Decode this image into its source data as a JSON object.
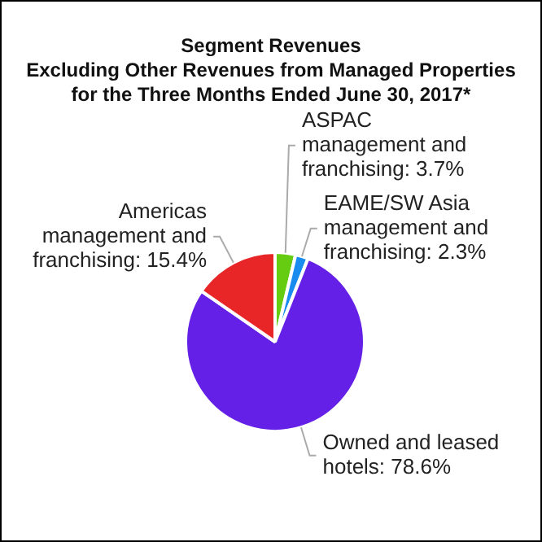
{
  "chart_data": {
    "type": "pie",
    "title": "Segment Revenues\nExcluding Other Revenues from Managed Properties\nfor the Three Months Ended June 30, 2017*",
    "categories": [
      "ASPAC management and franchising",
      "EAME/SW Asia management and franchising",
      "Owned and leased hotels",
      "Americas management and franchising"
    ],
    "values": [
      3.7,
      2.3,
      78.6,
      15.4
    ],
    "value_labels": [
      "3.7%",
      "2.3%",
      "78.6%",
      "15.4%"
    ],
    "colors": [
      "#66cc11",
      "#1a8cf0",
      "#6420e6",
      "#e82628"
    ],
    "legend": false
  }
}
